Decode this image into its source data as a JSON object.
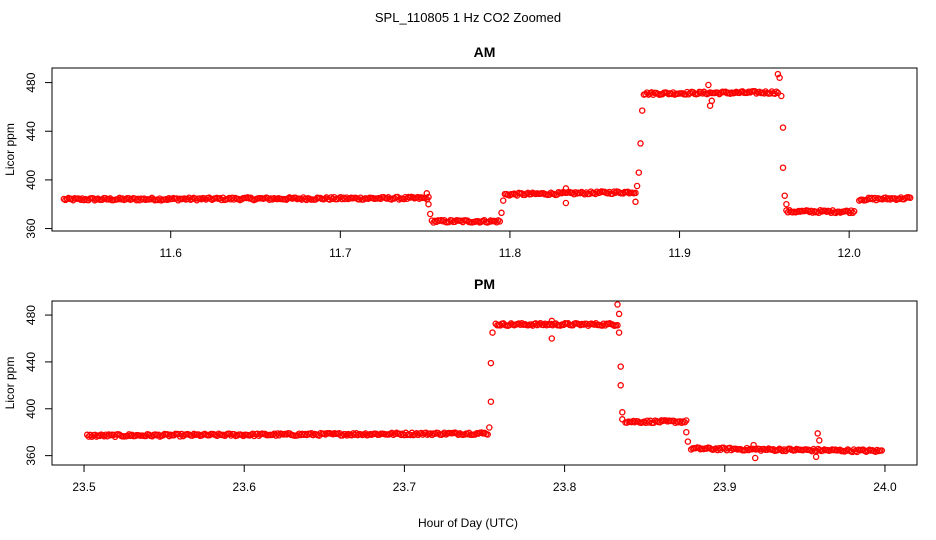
{
  "title": "SPL_110805  1 Hz CO2 Zoomed",
  "xlabel": "Hour of Day (UTC)",
  "colors": {
    "points": "#ff0000",
    "axes": "#000000",
    "background": "#ffffff"
  },
  "chart_data": [
    {
      "id": "am",
      "type": "scatter",
      "title": "AM",
      "ylabel": "Licor ppm",
      "xlim": [
        11.53,
        12.04
      ],
      "ylim": [
        358,
        492
      ],
      "xticks": [
        11.6,
        11.7,
        11.8,
        11.9,
        12.0
      ],
      "xtick_labels": [
        "11.6",
        "11.7",
        "11.8",
        "11.9",
        "12.0"
      ],
      "yticks": [
        360,
        400,
        440,
        480
      ],
      "ytick_labels": [
        "360",
        "400",
        "440",
        "480"
      ],
      "segments": [
        {
          "x": [
            11.537,
            11.752
          ],
          "y": [
            384,
            385
          ]
        },
        {
          "x": [
            11.754,
            11.794
          ],
          "y": [
            366,
            366
          ]
        },
        {
          "x": [
            11.797,
            11.874
          ],
          "y": [
            388,
            390
          ]
        },
        {
          "x": [
            11.879,
            11.958
          ],
          "y": [
            471,
            472
          ]
        },
        {
          "x": [
            11.963,
            12.003
          ],
          "y": [
            374,
            374
          ]
        },
        {
          "x": [
            12.006,
            12.036
          ],
          "y": [
            384,
            385
          ]
        }
      ],
      "transitions": [
        {
          "x": 11.751,
          "y": 389
        },
        {
          "x": 11.752,
          "y": 380
        },
        {
          "x": 11.753,
          "y": 372
        },
        {
          "x": 11.795,
          "y": 373
        },
        {
          "x": 11.796,
          "y": 383
        },
        {
          "x": 11.833,
          "y": 393
        },
        {
          "x": 11.833,
          "y": 381
        },
        {
          "x": 11.874,
          "y": 382
        },
        {
          "x": 11.875,
          "y": 395
        },
        {
          "x": 11.876,
          "y": 406
        },
        {
          "x": 11.877,
          "y": 430
        },
        {
          "x": 11.878,
          "y": 457
        },
        {
          "x": 11.917,
          "y": 478
        },
        {
          "x": 11.918,
          "y": 461
        },
        {
          "x": 11.919,
          "y": 465
        },
        {
          "x": 11.958,
          "y": 487
        },
        {
          "x": 11.959,
          "y": 484
        },
        {
          "x": 11.96,
          "y": 469
        },
        {
          "x": 11.961,
          "y": 443
        },
        {
          "x": 11.961,
          "y": 410
        },
        {
          "x": 11.962,
          "y": 387
        },
        {
          "x": 11.963,
          "y": 380
        }
      ]
    },
    {
      "id": "pm",
      "type": "scatter",
      "title": "PM",
      "ylabel": "Licor ppm",
      "xlim": [
        23.48,
        24.02
      ],
      "ylim": [
        352,
        492
      ],
      "xticks": [
        23.5,
        23.6,
        23.7,
        23.8,
        23.9,
        24.0
      ],
      "xtick_labels": [
        "23.5",
        "23.6",
        "23.7",
        "23.8",
        "23.9",
        "24.0"
      ],
      "yticks": [
        360,
        400,
        440,
        480
      ],
      "ytick_labels": [
        "360",
        "400",
        "440",
        "480"
      ],
      "segments": [
        {
          "x": [
            23.502,
            23.752
          ],
          "y": [
            377,
            379
          ]
        },
        {
          "x": [
            23.757,
            23.833
          ],
          "y": [
            472,
            472
          ]
        },
        {
          "x": [
            23.838,
            23.876
          ],
          "y": [
            389,
            389
          ]
        },
        {
          "x": [
            23.879,
            23.998
          ],
          "y": [
            366,
            364
          ]
        }
      ],
      "transitions": [
        {
          "x": 23.753,
          "y": 384
        },
        {
          "x": 23.754,
          "y": 406
        },
        {
          "x": 23.754,
          "y": 439
        },
        {
          "x": 23.755,
          "y": 465
        },
        {
          "x": 23.792,
          "y": 475
        },
        {
          "x": 23.792,
          "y": 460
        },
        {
          "x": 23.833,
          "y": 489
        },
        {
          "x": 23.834,
          "y": 481
        },
        {
          "x": 23.834,
          "y": 465
        },
        {
          "x": 23.835,
          "y": 436
        },
        {
          "x": 23.835,
          "y": 420
        },
        {
          "x": 23.836,
          "y": 397
        },
        {
          "x": 23.836,
          "y": 391
        },
        {
          "x": 23.876,
          "y": 380
        },
        {
          "x": 23.877,
          "y": 372
        },
        {
          "x": 23.918,
          "y": 369
        },
        {
          "x": 23.919,
          "y": 358
        },
        {
          "x": 23.958,
          "y": 379
        },
        {
          "x": 23.959,
          "y": 373
        },
        {
          "x": 23.957,
          "y": 359
        }
      ]
    }
  ]
}
